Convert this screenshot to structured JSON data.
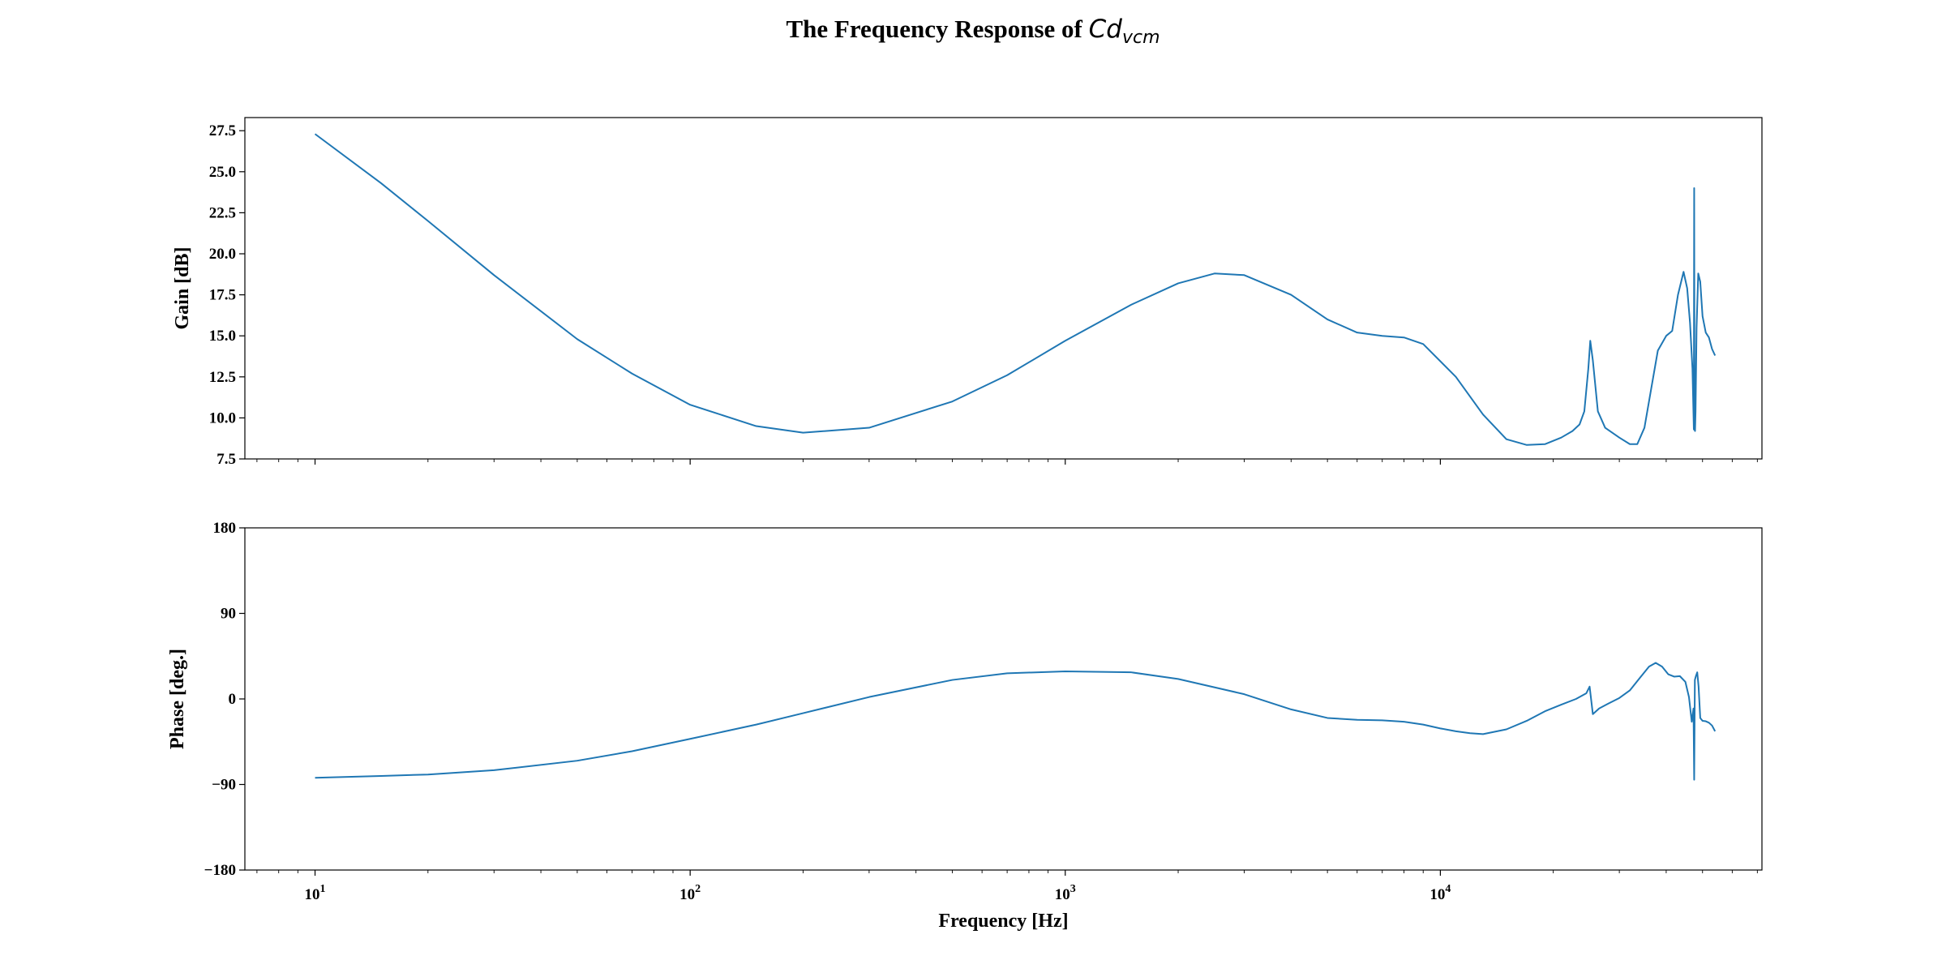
{
  "title_prefix": "The Frequency Response of ",
  "title_math_main": "Cd",
  "title_math_sub": "vcm",
  "colors": {
    "line": "#1f77b4",
    "axes": "#000000"
  },
  "chart_data": [
    {
      "type": "line",
      "name": "gain",
      "xscale": "log",
      "xlim": [
        6.5,
        72000
      ],
      "ylim": [
        7.5,
        28.3
      ],
      "xlabel": "",
      "ylabel": "Gain [dB]",
      "yticks": [
        7.5,
        10.0,
        12.5,
        15.0,
        17.5,
        20.0,
        22.5,
        25.0,
        27.5
      ],
      "ytick_labels": [
        "7.5",
        "10.0",
        "12.5",
        "15.0",
        "17.5",
        "20.0",
        "22.5",
        "25.0",
        "27.5"
      ],
      "x": [
        10,
        15,
        20,
        30,
        50,
        70,
        100,
        150,
        200,
        300,
        500,
        700,
        1000,
        1500,
        2000,
        2500,
        3000,
        4000,
        5000,
        6000,
        7000,
        8000,
        9000,
        11000,
        13000,
        15000,
        17000,
        19000,
        21000,
        22500,
        23500,
        24200,
        24800,
        25100,
        25500,
        26300,
        27500,
        30000,
        32000,
        33500,
        35000,
        36500,
        38000,
        40000,
        41500,
        43000,
        44500,
        45500,
        46300,
        47000,
        47400,
        47500,
        47600,
        47750,
        47900,
        48200,
        48700,
        49300,
        50000,
        51000,
        52000,
        53000,
        54000
      ],
      "y": [
        27.3,
        24.3,
        22.0,
        18.7,
        14.8,
        12.7,
        10.8,
        9.5,
        9.1,
        9.4,
        11.0,
        12.6,
        14.7,
        16.9,
        18.2,
        18.8,
        18.7,
        17.5,
        16.0,
        15.2,
        15.0,
        14.9,
        14.5,
        12.5,
        10.2,
        8.7,
        8.35,
        8.4,
        8.8,
        9.2,
        9.6,
        10.4,
        13.0,
        14.7,
        13.5,
        10.4,
        9.4,
        8.8,
        8.4,
        8.4,
        9.4,
        11.8,
        14.1,
        15.0,
        15.3,
        17.5,
        18.9,
        17.9,
        15.8,
        13.0,
        9.3,
        24.0,
        9.3,
        9.2,
        10.4,
        15.5,
        18.8,
        18.3,
        16.2,
        15.2,
        14.9,
        14.2,
        13.8
      ]
    },
    {
      "type": "line",
      "name": "phase",
      "xscale": "log",
      "xlim": [
        6.5,
        72000
      ],
      "ylim": [
        -180,
        180
      ],
      "xlabel": "Frequency [Hz]",
      "ylabel": "Phase [deg.]",
      "yticks": [
        -180,
        -90,
        0,
        90,
        180
      ],
      "ytick_labels": [
        "−180",
        "−90",
        "0",
        "90",
        "180"
      ],
      "xticks": [
        10,
        100,
        1000,
        10000
      ],
      "xtick_labels": [
        [
          "10",
          "1"
        ],
        [
          "10",
          "2"
        ],
        [
          "10",
          "3"
        ],
        [
          "10",
          "4"
        ]
      ],
      "x": [
        10,
        15,
        20,
        30,
        50,
        70,
        100,
        150,
        200,
        300,
        500,
        700,
        1000,
        1500,
        2000,
        3000,
        4000,
        5000,
        6000,
        7000,
        8000,
        9000,
        10000,
        11000,
        12000,
        13000,
        15000,
        17000,
        19000,
        21000,
        23000,
        24500,
        25000,
        25500,
        26500,
        28000,
        30000,
        32000,
        34000,
        36000,
        37500,
        39000,
        40500,
        42000,
        43500,
        45000,
        46000,
        46800,
        47300,
        47500,
        47700,
        48000,
        48400,
        48800,
        49300,
        50000,
        51000,
        52000,
        53000,
        54000
      ],
      "y": [
        -83,
        -81,
        -79.5,
        -75,
        -65,
        -55,
        -42,
        -27,
        -15,
        2,
        20,
        27,
        29,
        28,
        21,
        5,
        -11,
        -20,
        -22,
        -22.5,
        -24,
        -27,
        -31,
        -34,
        -36,
        -37,
        -32,
        -23,
        -13,
        -6,
        0,
        6,
        13,
        -16,
        -10,
        -5,
        1,
        9,
        22,
        34,
        38,
        34,
        26,
        23.5,
        24,
        18,
        2,
        -24,
        -10,
        -85,
        20,
        24,
        28,
        13,
        -20,
        -23,
        -23.5,
        -25,
        -28,
        -34
      ]
    }
  ]
}
